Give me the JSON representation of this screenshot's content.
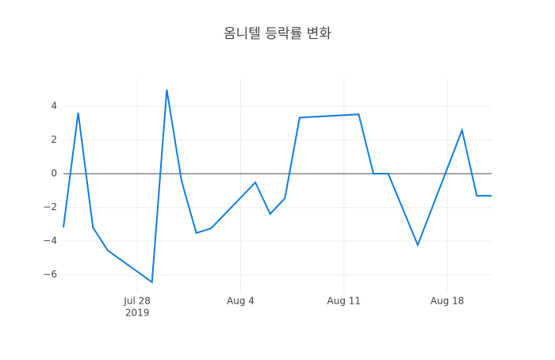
{
  "chart_data": {
    "type": "line",
    "title": "옴니텔 등락률 변화",
    "x": [
      "2019-07-23",
      "2019-07-24",
      "2019-07-25",
      "2019-07-26",
      "2019-07-29",
      "2019-07-30",
      "2019-07-31",
      "2019-08-01",
      "2019-08-02",
      "2019-08-05",
      "2019-08-06",
      "2019-08-07",
      "2019-08-08",
      "2019-08-12",
      "2019-08-13",
      "2019-08-14",
      "2019-08-16",
      "2019-08-19",
      "2019-08-20",
      "2019-08-21"
    ],
    "values": [
      -3.19,
      3.61,
      -3.19,
      -4.55,
      -6.43,
      4.98,
      -0.42,
      -3.52,
      -3.24,
      -0.52,
      -2.39,
      -1.46,
      3.33,
      3.52,
      0,
      0,
      -4.23,
      2.58,
      -1.31,
      -1.31
    ],
    "color": "#0f7ee0",
    "xlim": [
      "2019-07-23",
      "2019-08-21"
    ],
    "xticks": [
      {
        "value": "2019-07-28",
        "label": "Jul 28"
      },
      {
        "value": "2019-08-04",
        "label": "Aug 4"
      },
      {
        "value": "2019-08-11",
        "label": "Aug 11"
      },
      {
        "value": "2019-08-18",
        "label": "Aug 18"
      }
    ],
    "x_year_label": "2019",
    "ylim": [
      -7.1,
      5.6
    ],
    "yticks": [
      {
        "value": -6,
        "label": "−6"
      },
      {
        "value": -4,
        "label": "−4"
      },
      {
        "value": -2,
        "label": "−2"
      },
      0,
      2,
      4
    ],
    "grid": true
  }
}
